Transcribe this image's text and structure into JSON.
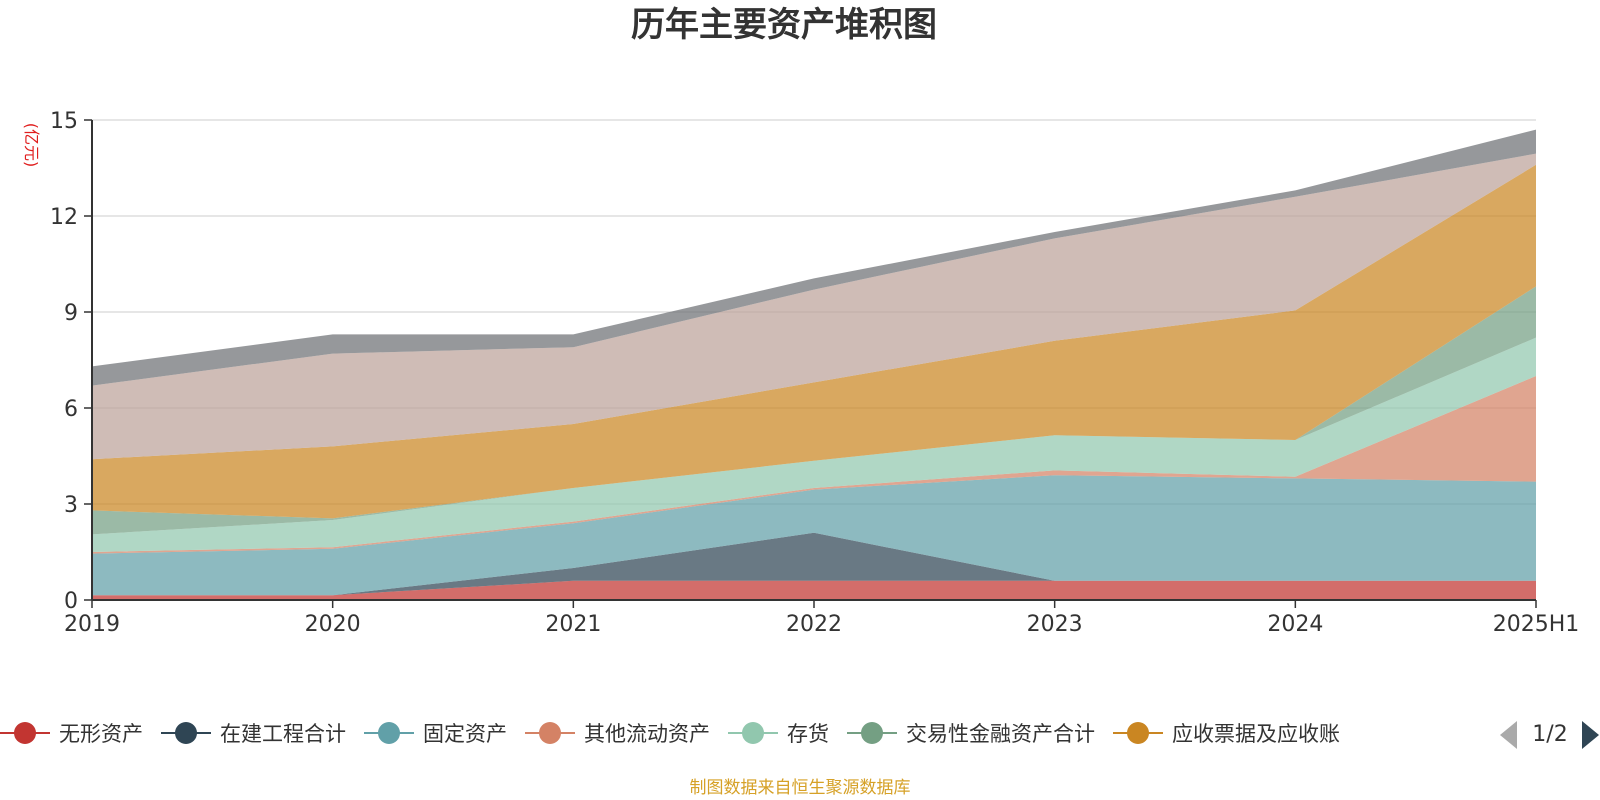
{
  "chart_data": {
    "type": "area",
    "stacked": true,
    "title": "历年主要资产堆积图",
    "ylabel": "(亿元)",
    "xlabel": "",
    "categories": [
      "2019",
      "2020",
      "2021",
      "2022",
      "2023",
      "2024",
      "2025H1"
    ],
    "ylim": [
      0,
      15
    ],
    "yticks": [
      "0",
      "3",
      "6",
      "9",
      "12",
      "15"
    ],
    "grid": true,
    "series": [
      {
        "name": "无形资产",
        "color": "#c23531",
        "values": [
          0.15,
          0.15,
          0.6,
          0.6,
          0.6,
          0.6,
          0.6
        ]
      },
      {
        "name": "在建工程合计",
        "color": "#2f4554",
        "values": [
          0,
          0,
          0.4,
          1.5,
          0,
          0,
          0
        ]
      },
      {
        "name": "固定资产",
        "color": "#61a0a8",
        "values": [
          1.3,
          1.45,
          1.4,
          1.35,
          3.3,
          3.2,
          3.1
        ]
      },
      {
        "name": "其他流动资产",
        "color": "#d48265",
        "values": [
          0.05,
          0.05,
          0.05,
          0.05,
          0.15,
          0.05,
          3.3
        ]
      },
      {
        "name": "存货",
        "color": "#91c7ae",
        "values": [
          0.55,
          0.85,
          1.05,
          0.85,
          1.1,
          1.15,
          1.2
        ]
      },
      {
        "name": "交易性金融资产合计",
        "color": "#749f83",
        "values": [
          0.75,
          0.05,
          0,
          0,
          0,
          0,
          1.6
        ]
      },
      {
        "name": "应收票据及应收账",
        "color": "#ca8622",
        "values": [
          1.6,
          2.25,
          2.0,
          2.45,
          2.95,
          4.05,
          3.8
        ]
      },
      {
        "name": "",
        "color": "#bda29a",
        "values": [
          2.3,
          2.9,
          2.4,
          2.9,
          3.2,
          3.55,
          0.35
        ]
      },
      {
        "name": "",
        "color": "#6e7074",
        "values": [
          0.6,
          0.6,
          0.4,
          0.35,
          0.2,
          0.2,
          0.75
        ]
      }
    ],
    "legend": {
      "placement": "bottom",
      "visible_items": [
        "无形资产",
        "在建工程合计",
        "固定资产",
        "其他流动资产",
        "存货",
        "交易性金融资产合计",
        "应收票据及应收账"
      ],
      "page_indicator": "1/2"
    },
    "source_note": "制图数据来自恒生聚源数据库",
    "colors": {
      "title": "#333333",
      "axis": "#333333",
      "grid": "#cccccc",
      "unit_label": "#e01e1e",
      "source_note": "#d6a127",
      "pager_active": "#2f4554",
      "pager_inactive": "#aaaaaa"
    }
  }
}
